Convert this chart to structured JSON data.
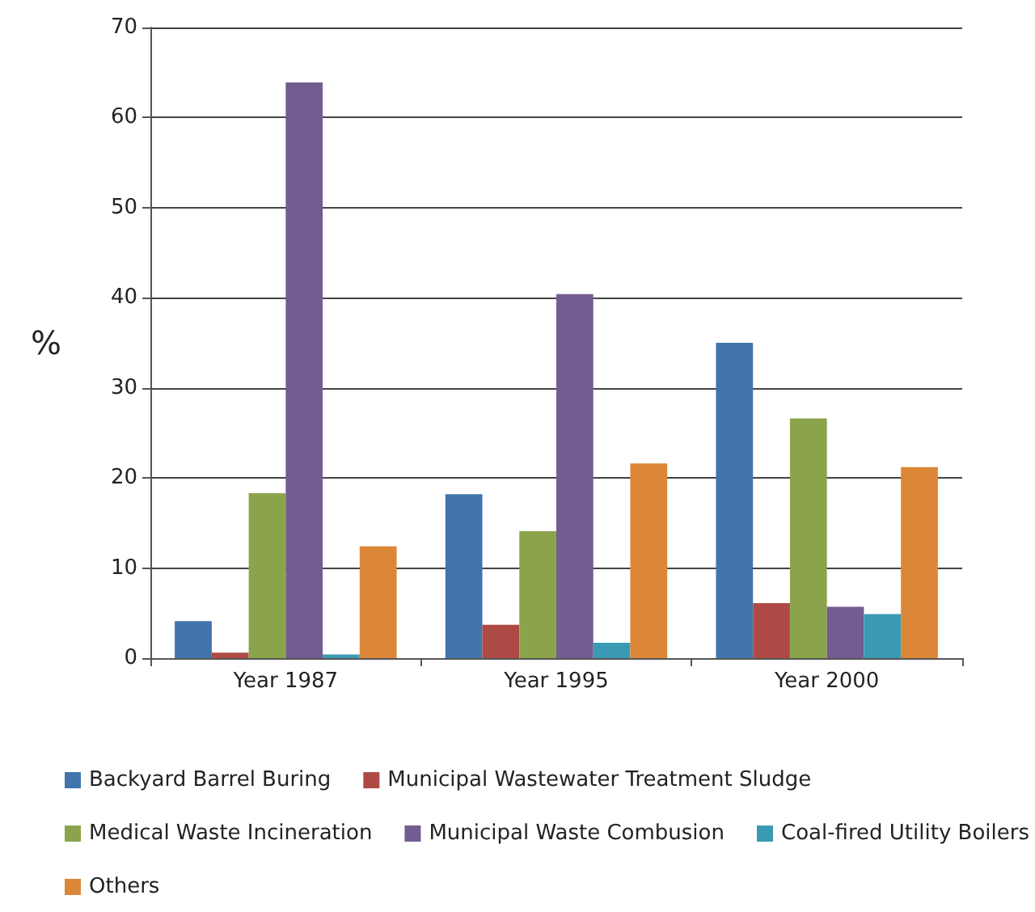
{
  "chart_data": {
    "type": "bar",
    "ylabel": "%",
    "categories": [
      "Year 1987",
      "Year 1995",
      "Year 2000"
    ],
    "series": [
      {
        "name": "Backyard Barrel Buring",
        "color": "#4174ab",
        "values": [
          4.1,
          18.2,
          35
        ]
      },
      {
        "name": "Municipal Wastewater Treatment Sludge",
        "color": "#ae4a45",
        "values": [
          0.6,
          3.7,
          6.1
        ]
      },
      {
        "name": "Medical Waste Incineration",
        "color": "#8ba44c",
        "values": [
          18.3,
          14.1,
          26.6
        ]
      },
      {
        "name": "Municipal Waste Combusion",
        "color": "#735c90",
        "values": [
          63.9,
          40.4,
          5.7
        ]
      },
      {
        "name": "Coal-fired Utility Boilers",
        "color": "#3a9ab4",
        "values": [
          0.4,
          1.7,
          4.9
        ]
      },
      {
        "name": "Others",
        "color": "#dc8737",
        "values": [
          12.4,
          21.6,
          21.2
        ]
      }
    ],
    "ylim": [
      0,
      70
    ],
    "yticks": [
      0,
      10,
      20,
      30,
      40,
      50,
      60,
      70
    ],
    "grid": "y",
    "legend": "bottom"
  }
}
